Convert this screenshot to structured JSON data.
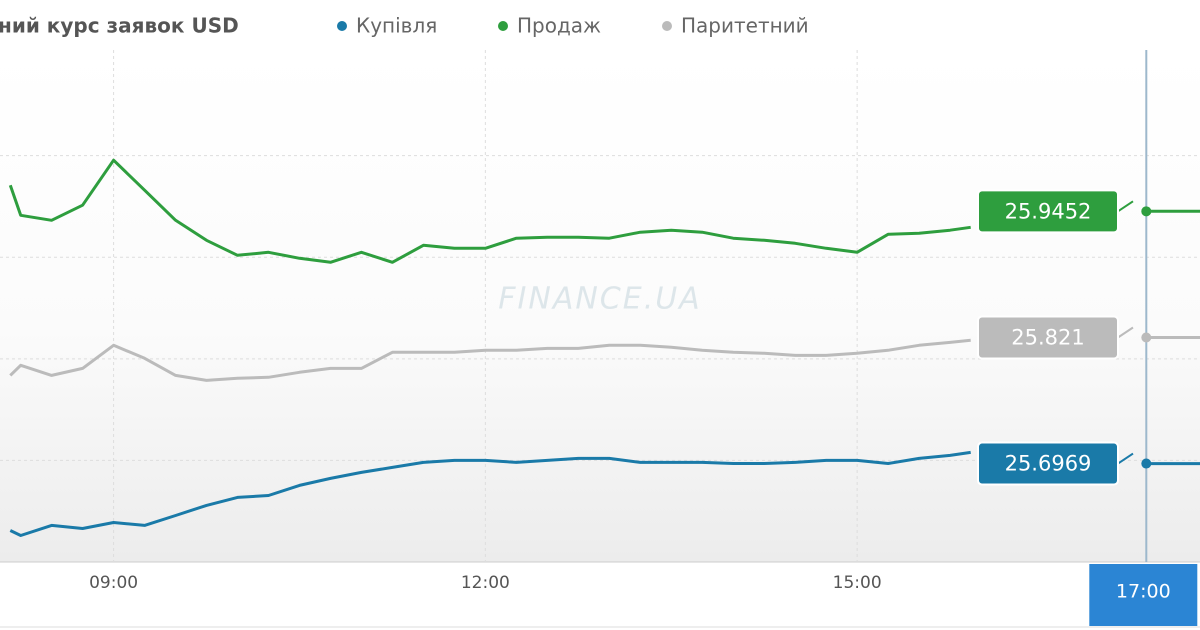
{
  "chart_data": {
    "type": "line",
    "title": "ний курс заявок USD",
    "watermark": "FINANCE.UA",
    "x": [
      490,
      495,
      510,
      525,
      540,
      555,
      570,
      585,
      600,
      615,
      630,
      645,
      660,
      675,
      690,
      705,
      720,
      735,
      750,
      765,
      780,
      795,
      810,
      825,
      840,
      855,
      870,
      885,
      900,
      915,
      930,
      945,
      955,
      990,
      1040,
      1066
    ],
    "xlim": [
      485,
      1066
    ],
    "xticks": [
      {
        "value": 540,
        "label": "09:00"
      },
      {
        "value": 720,
        "label": "12:00"
      },
      {
        "value": 900,
        "label": "15:00"
      }
    ],
    "crosshair": {
      "value": 1040,
      "label": "17:00"
    },
    "ylim": [
      25.6,
      26.104
    ],
    "yticks": [
      25.7,
      25.8,
      25.9,
      26.0
    ],
    "grid": true,
    "series": [
      {
        "name": "Купівля",
        "color": "#1a7aa8",
        "current": 25.6969,
        "values": [
          25.631,
          25.6261,
          25.636,
          25.633,
          25.6389,
          25.636,
          25.6458,
          25.6557,
          25.6636,
          25.6655,
          25.6754,
          25.6823,
          25.6882,
          25.6931,
          25.698,
          25.7,
          25.7,
          25.698,
          25.7,
          25.702,
          25.702,
          25.698,
          25.698,
          25.698,
          25.697,
          25.697,
          25.698,
          25.7,
          25.7,
          25.697,
          25.702,
          25.7049,
          25.7079,
          null,
          25.6969,
          25.6969
        ]
      },
      {
        "name": "Продаж",
        "color": "#2e9e3e",
        "current": 25.9452,
        "values": [
          25.9709,
          25.9413,
          25.9364,
          25.9512,
          25.9955,
          25.966,
          25.9364,
          25.9167,
          25.9019,
          25.9049,
          25.899,
          25.895,
          25.9049,
          25.895,
          25.9118,
          25.9088,
          25.9088,
          25.9187,
          25.9197,
          25.9197,
          25.9187,
          25.9246,
          25.9266,
          25.9246,
          25.9187,
          25.9167,
          25.9137,
          25.9088,
          25.9049,
          25.9226,
          25.9236,
          25.9266,
          25.9295,
          null,
          25.9452,
          25.9452
        ]
      },
      {
        "name": "Паритетний",
        "color": "#bbbbbb",
        "current": 25.821,
        "values": [
          25.7837,
          25.7936,
          25.7837,
          25.7906,
          25.8133,
          25.8005,
          25.7837,
          25.7788,
          25.7808,
          25.7818,
          25.7867,
          25.7906,
          25.7906,
          25.8064,
          25.8064,
          25.8064,
          25.8084,
          25.8084,
          25.8103,
          25.8103,
          25.8133,
          25.8133,
          25.8113,
          25.8084,
          25.8064,
          25.8054,
          25.8034,
          25.8034,
          25.8054,
          25.8084,
          25.8133,
          25.8162,
          25.8182,
          null,
          25.821,
          25.821
        ]
      }
    ]
  }
}
